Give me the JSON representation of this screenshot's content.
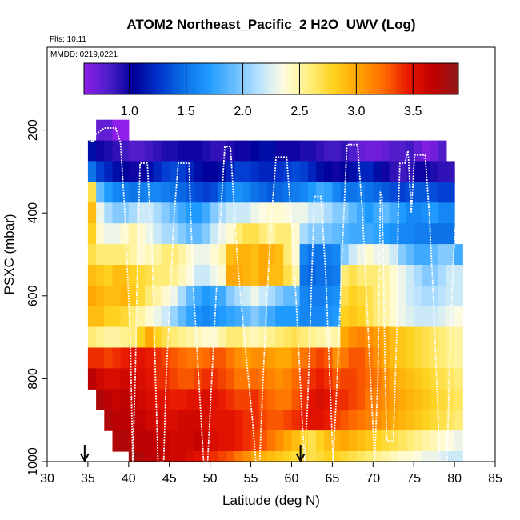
{
  "chart_data": {
    "type": "heatmap",
    "title": "ATOM2 Northeast_Pacific_2 H2O_UWV (Log)",
    "flights_label": "Flts: 10,11",
    "dates_label": "MMDD: 0219,0221",
    "xlabel": "Latitude (deg N)",
    "ylabel": "PSXC (mbar)",
    "xlim": [
      30,
      85
    ],
    "ylim": [
      1000,
      0
    ],
    "x_ticks": [
      30,
      35,
      40,
      45,
      50,
      55,
      60,
      65,
      70,
      75,
      80,
      85
    ],
    "y_ticks": [
      200,
      400,
      600,
      800,
      1000
    ],
    "colorbar": {
      "range": [
        0.6,
        3.9
      ],
      "ticks": [
        "1.0",
        "1.5",
        "2.0",
        "2.5",
        "3.0",
        "3.5"
      ],
      "tick_values": [
        1.0,
        1.5,
        2.0,
        2.5,
        3.0,
        3.5
      ],
      "colors": [
        "#8f1fe8",
        "#4b1dc8",
        "#000099",
        "#0033cc",
        "#0a6fe6",
        "#1f9bff",
        "#66bdff",
        "#b8e2ff",
        "#fffce0",
        "#ffef80",
        "#ffd21f",
        "#ffa300",
        "#ff6d00",
        "#e81700",
        "#c00000",
        "#8f1818"
      ]
    },
    "pressure_levels": [
      200,
      250,
      300,
      350,
      400,
      450,
      500,
      550,
      600,
      650,
      700,
      750,
      800,
      850,
      900,
      950,
      1000
    ],
    "lat_start": 35,
    "lat_step": 1,
    "values_log10": [
      [
        null,
        0.75,
        0.75,
        0.6,
        0.6,
        null,
        null,
        null,
        null,
        null,
        null,
        null,
        null,
        null,
        null,
        null,
        null,
        null,
        null,
        null,
        null,
        null,
        null,
        null,
        null,
        null,
        null,
        null,
        null,
        null,
        null,
        null,
        null,
        null,
        null,
        null,
        null,
        null,
        null,
        null,
        null,
        null,
        null,
        null,
        null,
        null
      ],
      [
        1.1,
        1.0,
        0.95,
        0.9,
        0.85,
        0.8,
        0.8,
        0.85,
        0.9,
        0.95,
        0.95,
        1.0,
        1.0,
        1.0,
        0.95,
        0.9,
        0.9,
        0.95,
        1.0,
        1.0,
        1.05,
        1.1,
        1.1,
        1.0,
        1.0,
        1.0,
        0.95,
        0.95,
        0.9,
        0.85,
        0.85,
        0.9,
        0.8,
        0.75,
        0.7,
        0.7,
        0.75,
        0.8,
        0.8,
        0.85,
        0.75,
        0.65,
        0.7,
        0.8,
        null,
        null
      ],
      [
        1.5,
        1.3,
        1.2,
        1.1,
        1.05,
        1.0,
        1.0,
        1.1,
        1.2,
        1.3,
        1.35,
        1.3,
        1.2,
        1.1,
        1.05,
        1.05,
        1.1,
        1.2,
        1.3,
        1.3,
        1.25,
        1.2,
        1.2,
        1.25,
        1.3,
        1.35,
        1.3,
        1.2,
        1.1,
        1.05,
        1.0,
        1.05,
        1.1,
        1.2,
        1.2,
        1.1,
        1.0,
        0.9,
        0.85,
        0.9,
        1.0,
        1.0,
        0.95,
        0.9,
        0.9,
        null
      ],
      [
        2.7,
        1.9,
        1.7,
        1.6,
        1.55,
        1.5,
        1.55,
        1.6,
        1.6,
        1.55,
        1.5,
        1.45,
        1.4,
        1.35,
        1.3,
        1.35,
        1.5,
        1.6,
        1.65,
        1.6,
        1.5,
        1.45,
        1.4,
        1.45,
        1.5,
        1.55,
        1.6,
        1.7,
        1.8,
        1.75,
        1.6,
        1.5,
        1.5,
        1.55,
        1.5,
        1.45,
        1.4,
        1.35,
        1.3,
        1.35,
        1.4,
        1.4,
        1.35,
        1.3,
        1.3,
        null
      ],
      [
        2.9,
        2.3,
        2.1,
        2.0,
        2.0,
        2.1,
        2.2,
        2.2,
        2.1,
        2.0,
        1.9,
        1.8,
        1.7,
        1.7,
        1.8,
        2.0,
        2.1,
        2.2,
        2.2,
        2.2,
        2.3,
        2.35,
        2.4,
        2.4,
        2.35,
        2.3,
        2.3,
        2.2,
        2.2,
        2.1,
        2.0,
        2.0,
        1.9,
        1.8,
        1.7,
        1.8,
        1.9,
        1.8,
        1.7,
        1.6,
        1.6,
        1.65,
        1.7,
        1.6,
        1.6,
        null
      ],
      [
        2.8,
        2.4,
        2.3,
        2.3,
        2.4,
        2.5,
        2.4,
        2.3,
        2.2,
        2.1,
        2.1,
        2.0,
        1.9,
        1.9,
        2.0,
        2.2,
        2.3,
        2.4,
        2.6,
        2.7,
        2.7,
        2.6,
        2.5,
        2.6,
        2.6,
        2.4,
        2.1,
        2.0,
        2.0,
        1.95,
        1.9,
        1.85,
        1.8,
        1.8,
        1.8,
        1.75,
        1.7,
        1.65,
        1.6,
        1.6,
        1.55,
        1.55,
        1.5,
        1.5,
        1.5,
        null
      ],
      [
        2.7,
        2.6,
        2.6,
        2.6,
        2.6,
        2.5,
        2.4,
        2.45,
        2.5,
        2.6,
        2.6,
        2.5,
        2.4,
        2.3,
        2.3,
        2.4,
        2.5,
        2.9,
        2.95,
        2.95,
        2.9,
        3.0,
        2.95,
        2.9,
        2.6,
        2.4,
        1.6,
        1.5,
        1.5,
        1.55,
        1.6,
        2.0,
        2.2,
        2.3,
        2.4,
        2.3,
        2.3,
        2.2,
        2.0,
        1.9,
        1.8,
        1.8,
        1.9,
        2.0,
        2.0,
        1.8
      ],
      [
        2.9,
        2.85,
        2.8,
        2.9,
        2.9,
        2.8,
        2.75,
        2.7,
        2.6,
        2.6,
        2.55,
        2.45,
        2.35,
        2.2,
        2.2,
        2.3,
        2.4,
        3.0,
        3.0,
        2.95,
        2.9,
        3.0,
        2.9,
        2.9,
        2.7,
        2.5,
        1.5,
        1.45,
        1.5,
        1.5,
        1.55,
        2.6,
        2.7,
        2.6,
        2.6,
        2.6,
        2.5,
        2.4,
        2.3,
        2.2,
        2.1,
        2.0,
        2.0,
        2.1,
        2.2,
        2.2
      ],
      [
        3.0,
        2.95,
        2.9,
        2.9,
        2.95,
        2.85,
        2.75,
        2.6,
        2.5,
        2.4,
        2.3,
        2.1,
        1.9,
        1.8,
        1.7,
        1.75,
        1.8,
        2.0,
        2.1,
        2.2,
        2.3,
        2.2,
        2.1,
        2.0,
        1.9,
        1.9,
        1.6,
        1.55,
        1.55,
        1.6,
        1.65,
        2.7,
        2.8,
        2.75,
        2.7,
        2.6,
        2.5,
        2.4,
        2.3,
        2.2,
        2.15,
        2.1,
        2.1,
        2.15,
        2.2,
        2.2
      ],
      [
        2.9,
        2.9,
        2.8,
        2.8,
        2.75,
        2.6,
        2.5,
        2.4,
        2.3,
        2.2,
        2.05,
        1.9,
        1.75,
        1.65,
        1.6,
        1.65,
        1.7,
        1.75,
        1.8,
        1.9,
        2.0,
        1.9,
        1.8,
        1.7,
        1.7,
        1.7,
        1.6,
        1.6,
        1.6,
        1.65,
        1.7,
        2.8,
        2.85,
        2.8,
        2.7,
        2.6,
        2.5,
        2.4,
        2.3,
        2.25,
        2.2,
        2.2,
        2.2,
        2.25,
        2.3,
        2.35
      ],
      [
        2.6,
        2.55,
        2.5,
        2.5,
        2.55,
        2.6,
        2.8,
        3.0,
        2.8,
        2.7,
        2.6,
        2.55,
        2.5,
        2.45,
        2.4,
        2.4,
        2.5,
        2.6,
        2.6,
        2.5,
        2.45,
        2.5,
        2.55,
        2.6,
        2.65,
        2.7,
        2.6,
        2.55,
        2.5,
        2.45,
        2.5,
        3.0,
        3.1,
        3.15,
        3.1,
        3.05,
        3.0,
        2.9,
        2.85,
        2.8,
        2.75,
        2.7,
        2.65,
        2.6,
        2.55,
        2.5
      ],
      [
        3.4,
        3.4,
        3.35,
        3.4,
        3.45,
        3.5,
        3.5,
        3.45,
        3.4,
        3.35,
        3.3,
        3.25,
        3.2,
        3.2,
        3.25,
        3.3,
        3.3,
        3.2,
        3.1,
        3.05,
        3.1,
        3.1,
        3.05,
        3.0,
        3.0,
        3.1,
        3.2,
        3.3,
        3.35,
        3.3,
        3.1,
        3.2,
        3.3,
        3.3,
        3.2,
        3.1,
        3.0,
        2.9,
        2.85,
        2.8,
        2.75,
        2.7,
        2.65,
        2.6,
        2.55,
        2.5
      ],
      [
        3.7,
        3.6,
        3.55,
        3.55,
        3.6,
        3.6,
        3.55,
        3.5,
        3.4,
        3.4,
        3.35,
        3.3,
        3.3,
        3.35,
        3.4,
        3.4,
        3.35,
        3.3,
        3.2,
        3.2,
        3.25,
        3.2,
        3.15,
        3.1,
        3.15,
        3.25,
        3.35,
        3.4,
        3.45,
        3.4,
        3.3,
        3.35,
        3.35,
        3.3,
        3.25,
        3.2,
        3.1,
        3.0,
        2.95,
        2.9,
        2.85,
        2.8,
        2.75,
        2.7,
        2.65,
        2.6
      ],
      [
        null,
        3.75,
        3.7,
        3.65,
        3.7,
        3.65,
        3.6,
        3.55,
        3.5,
        3.5,
        3.45,
        3.45,
        3.5,
        3.5,
        3.55,
        3.5,
        3.45,
        3.4,
        3.35,
        3.35,
        3.4,
        3.3,
        3.25,
        3.2,
        3.2,
        3.3,
        3.4,
        3.5,
        3.55,
        3.5,
        3.4,
        3.4,
        3.35,
        3.3,
        3.2,
        3.15,
        3.1,
        3.05,
        3.0,
        2.95,
        2.9,
        2.85,
        2.8,
        2.75,
        2.7,
        2.65
      ],
      [
        null,
        null,
        3.75,
        3.7,
        3.7,
        3.7,
        3.65,
        3.6,
        3.6,
        3.55,
        3.55,
        3.6,
        3.6,
        3.6,
        3.55,
        3.5,
        3.5,
        3.5,
        3.45,
        3.4,
        3.4,
        3.35,
        3.3,
        3.3,
        3.35,
        3.4,
        3.45,
        3.5,
        3.5,
        3.45,
        3.35,
        3.3,
        3.25,
        3.2,
        3.15,
        3.1,
        3.05,
        3.0,
        2.95,
        2.9,
        2.85,
        2.8,
        2.75,
        2.7,
        2.65,
        2.6
      ],
      [
        null,
        null,
        null,
        3.75,
        3.75,
        3.7,
        3.7,
        3.7,
        3.65,
        3.65,
        3.6,
        3.6,
        3.6,
        3.65,
        3.6,
        3.55,
        3.5,
        3.5,
        3.45,
        3.4,
        3.35,
        3.3,
        3.2,
        3.1,
        3.0,
        2.9,
        2.8,
        2.7,
        2.8,
        2.9,
        2.95,
        3.0,
        2.95,
        2.9,
        2.85,
        2.8,
        2.75,
        2.7,
        2.65,
        2.6,
        2.55,
        2.5,
        2.45,
        2.4,
        2.35,
        2.3
      ],
      [
        null,
        null,
        null,
        null,
        null,
        3.8,
        3.75,
        3.7,
        3.7,
        3.65,
        3.6,
        3.6,
        3.55,
        3.5,
        3.45,
        3.4,
        3.35,
        3.3,
        3.2,
        3.1,
        3.0,
        2.95,
        2.9,
        2.85,
        2.8,
        2.75,
        2.75,
        2.7,
        2.75,
        2.8,
        2.8,
        2.75,
        2.7,
        2.65,
        2.6,
        2.55,
        2.5,
        2.45,
        2.4,
        2.4,
        2.35,
        2.3,
        2.3,
        2.25,
        2.2,
        2.2
      ]
    ],
    "flight_track": [
      [
        35,
        215
      ],
      [
        35.6,
        230
      ],
      [
        36,
        210
      ],
      [
        37,
        195
      ],
      [
        38.4,
        195
      ],
      [
        39,
        230
      ],
      [
        39.6,
        420
      ],
      [
        40.2,
        700
      ],
      [
        40.5,
        1000
      ],
      [
        40.8,
        800
      ],
      [
        41.1,
        500
      ],
      [
        41.4,
        280
      ],
      [
        42.3,
        280
      ],
      [
        42.9,
        500
      ],
      [
        43.3,
        800
      ],
      [
        43.6,
        1000
      ],
      [
        44.3,
        1000
      ],
      [
        44.6,
        800
      ],
      [
        45.1,
        600
      ],
      [
        45.6,
        400
      ],
      [
        46.1,
        280
      ],
      [
        47.4,
        280
      ],
      [
        47.6,
        400
      ],
      [
        48.0,
        600
      ],
      [
        48.6,
        800
      ],
      [
        49.2,
        1000
      ],
      [
        49.7,
        1000
      ],
      [
        50.2,
        800
      ],
      [
        51.0,
        500
      ],
      [
        51.8,
        240
      ],
      [
        52.5,
        240
      ],
      [
        53.3,
        500
      ],
      [
        54.2,
        700
      ],
      [
        55.2,
        900
      ],
      [
        55.6,
        1000
      ],
      [
        56.1,
        1000
      ],
      [
        56.5,
        800
      ],
      [
        57.0,
        600
      ],
      [
        57.5,
        420
      ],
      [
        58.1,
        265
      ],
      [
        59.4,
        265
      ],
      [
        60.1,
        450
      ],
      [
        60.8,
        700
      ],
      [
        61.3,
        900
      ],
      [
        61.6,
        1000
      ],
      [
        62.0,
        850
      ],
      [
        62.4,
        600
      ],
      [
        62.8,
        360
      ],
      [
        63.6,
        360
      ],
      [
        64.2,
        550
      ],
      [
        64.7,
        800
      ],
      [
        65.1,
        1000
      ],
      [
        65.6,
        800
      ],
      [
        66.2,
        500
      ],
      [
        66.8,
        235
      ],
      [
        68.1,
        235
      ],
      [
        68.7,
        400
      ],
      [
        69.2,
        600
      ],
      [
        69.7,
        800
      ],
      [
        70.2,
        1000
      ],
      [
        70.6,
        800
      ],
      [
        70.8,
        550
      ],
      [
        70.9,
        350
      ],
      [
        71.1,
        360
      ],
      [
        71.3,
        550
      ],
      [
        71.5,
        800
      ],
      [
        71.7,
        950
      ],
      [
        72.5,
        950
      ],
      [
        72.9,
        700
      ],
      [
        73.1,
        400
      ],
      [
        73.3,
        280
      ],
      [
        73.9,
        280
      ],
      [
        74.3,
        250
      ],
      [
        74.7,
        400
      ],
      [
        75.1,
        260
      ],
      [
        76.4,
        260
      ],
      [
        76.9,
        400
      ],
      [
        77.4,
        600
      ],
      [
        77.8,
        800
      ],
      [
        78.2,
        1000
      ],
      [
        79.1,
        1000
      ],
      [
        79.5,
        700
      ],
      [
        79.9,
        500
      ],
      [
        80.3,
        380
      ],
      [
        80.6,
        300
      ]
    ],
    "arrows_lat": [
      34.6,
      61.1
    ]
  }
}
